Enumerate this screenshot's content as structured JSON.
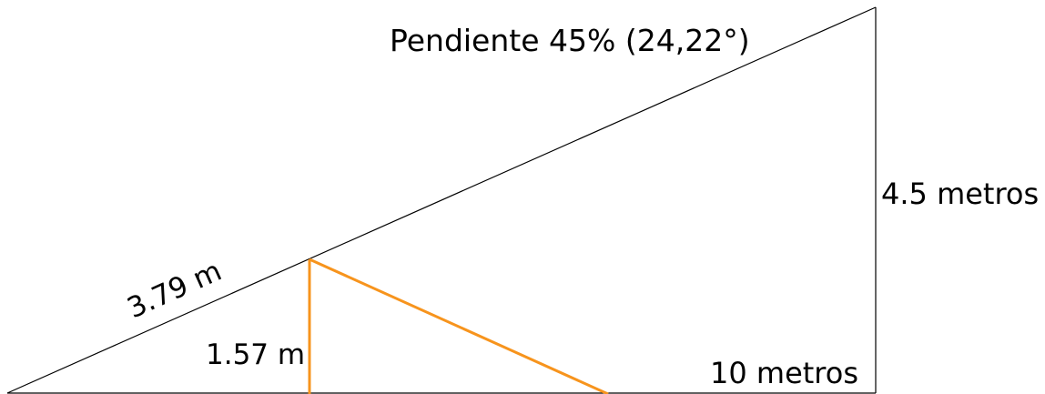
{
  "labels": {
    "slope": "Pendiente 45% (24,22°)",
    "height": "4.5 metros",
    "base": "10 metros",
    "hyp_segment": "3.79 m",
    "inner_height": "1.57 m"
  },
  "colors": {
    "outline": "#000000",
    "highlight": "#f7941d",
    "background": "#ffffff"
  }
}
